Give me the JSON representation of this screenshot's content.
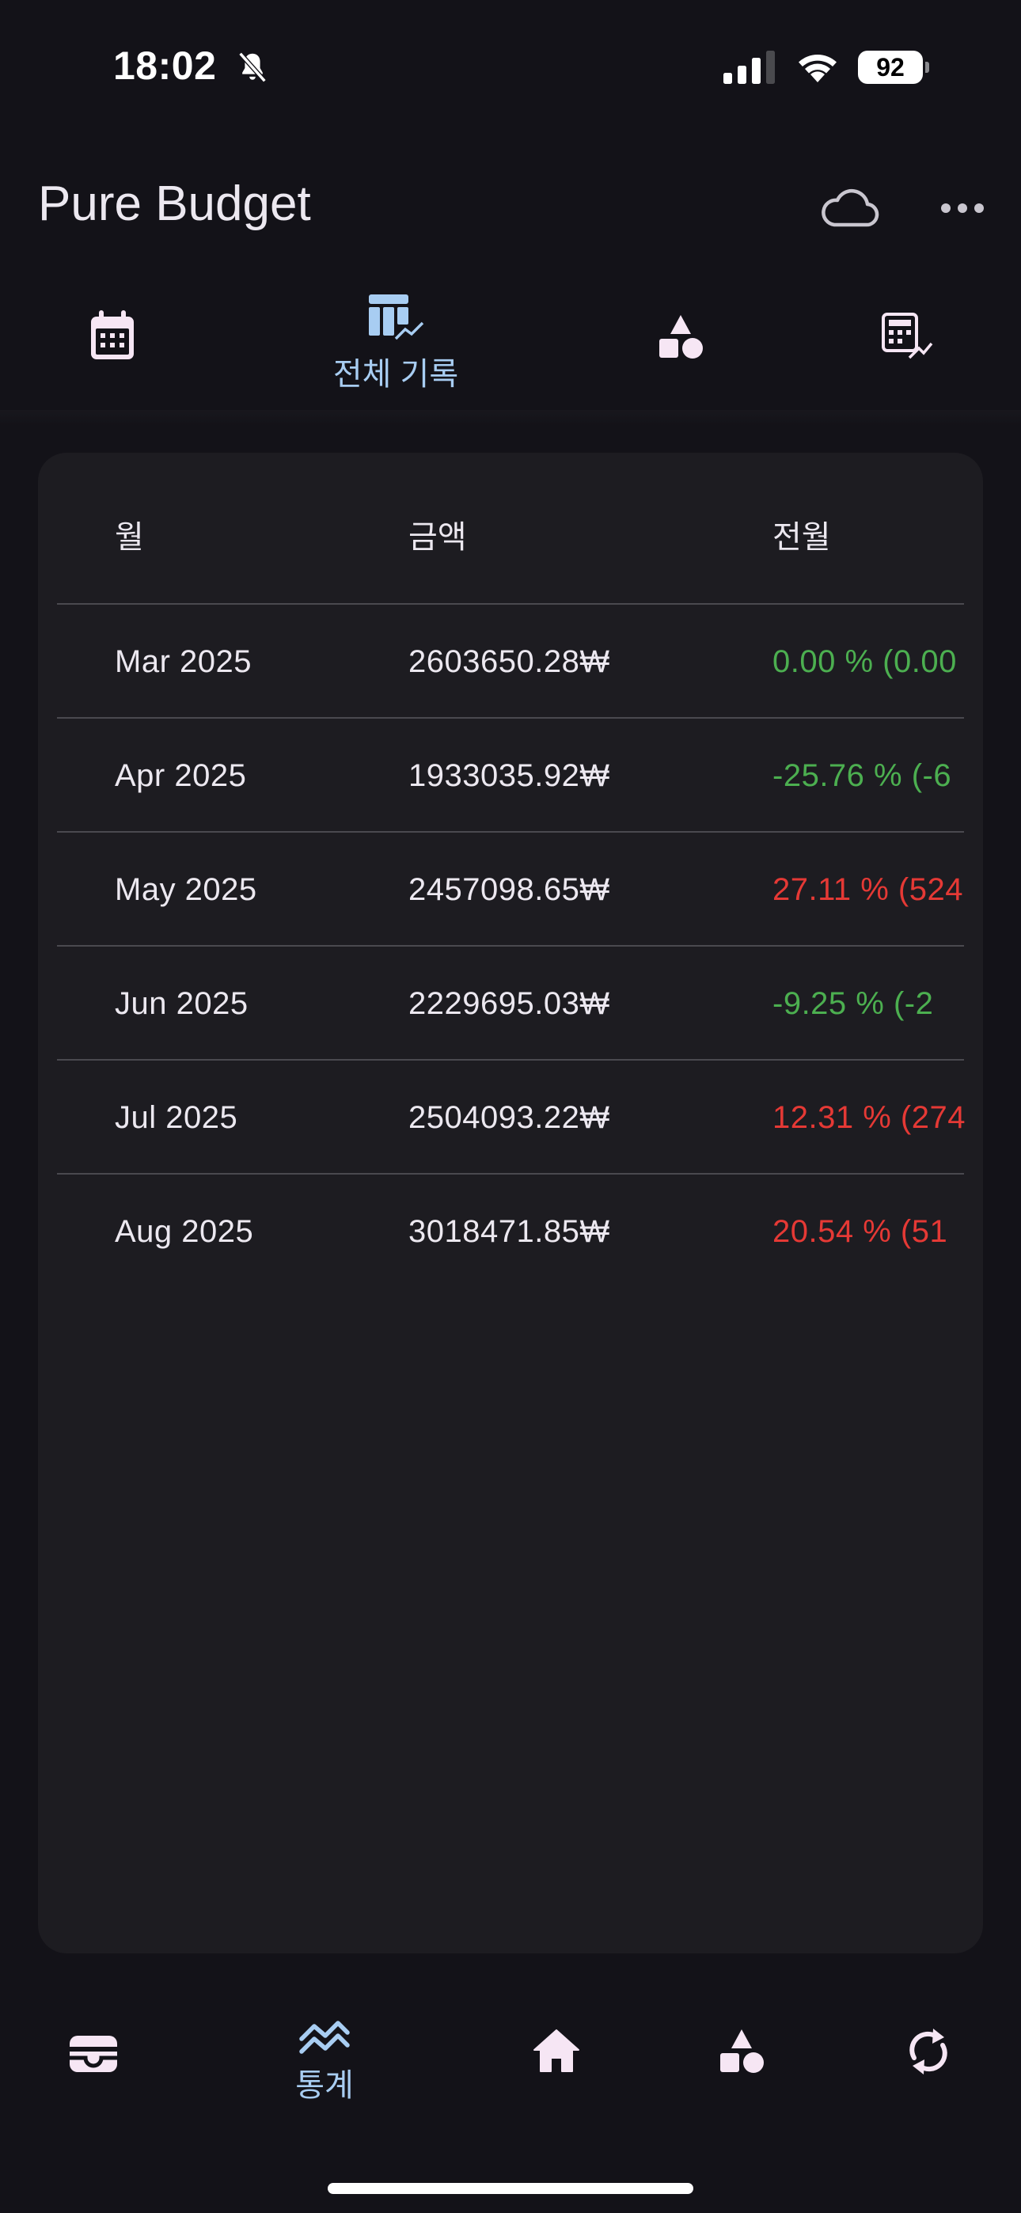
{
  "status_bar": {
    "time": "18:02",
    "battery": "92",
    "icons": [
      "bell-slash-icon",
      "cellular-signal-icon",
      "wifi-icon",
      "battery-icon"
    ]
  },
  "app_bar": {
    "title": "Pure Budget",
    "actions": [
      "cloud-icon",
      "more-horizontal-icon"
    ]
  },
  "top_tabs": [
    {
      "icon": "calendar-icon",
      "label": "",
      "active": false
    },
    {
      "icon": "table-chart-icon",
      "label": "전체 기록",
      "active": true
    },
    {
      "icon": "category-shapes-icon",
      "label": "",
      "active": false
    },
    {
      "icon": "calculator-chart-icon",
      "label": "",
      "active": false
    }
  ],
  "table": {
    "headers": {
      "month": "월",
      "amount": "금액",
      "change": "전월"
    },
    "rows": [
      {
        "month": "Mar 2025",
        "amount": "2603650.28₩",
        "change": "0.00 % (0.00",
        "trend": "neg"
      },
      {
        "month": "Apr 2025",
        "amount": "1933035.92₩",
        "change": "-25.76 % (-6",
        "trend": "neg"
      },
      {
        "month": "May 2025",
        "amount": "2457098.65₩",
        "change": "27.11 % (524",
        "trend": "pos"
      },
      {
        "month": "Jun 2025",
        "amount": "2229695.03₩",
        "change": "-9.25 % (-2",
        "trend": "neg"
      },
      {
        "month": "Jul 2025",
        "amount": "2504093.22₩",
        "change": "12.31 % (274",
        "trend": "pos"
      },
      {
        "month": "Aug 2025",
        "amount": "3018471.85₩",
        "change": "20.54 % (51",
        "trend": "pos"
      }
    ]
  },
  "bottom_nav": [
    {
      "icon": "wallet-icon",
      "label": "",
      "active": false
    },
    {
      "icon": "stats-chart-icon",
      "label": "통계",
      "active": true
    },
    {
      "icon": "home-icon",
      "label": "",
      "active": false
    },
    {
      "icon": "category-shapes-icon",
      "label": "",
      "active": false
    },
    {
      "icon": "sync-icon",
      "label": "",
      "active": false
    }
  ],
  "colors": {
    "background": "#131218",
    "card": "#1d1c21",
    "accent": "#a8cdf2",
    "icon": "#f6e6f4",
    "decrease": "#4caf50",
    "increase": "#e53935"
  }
}
